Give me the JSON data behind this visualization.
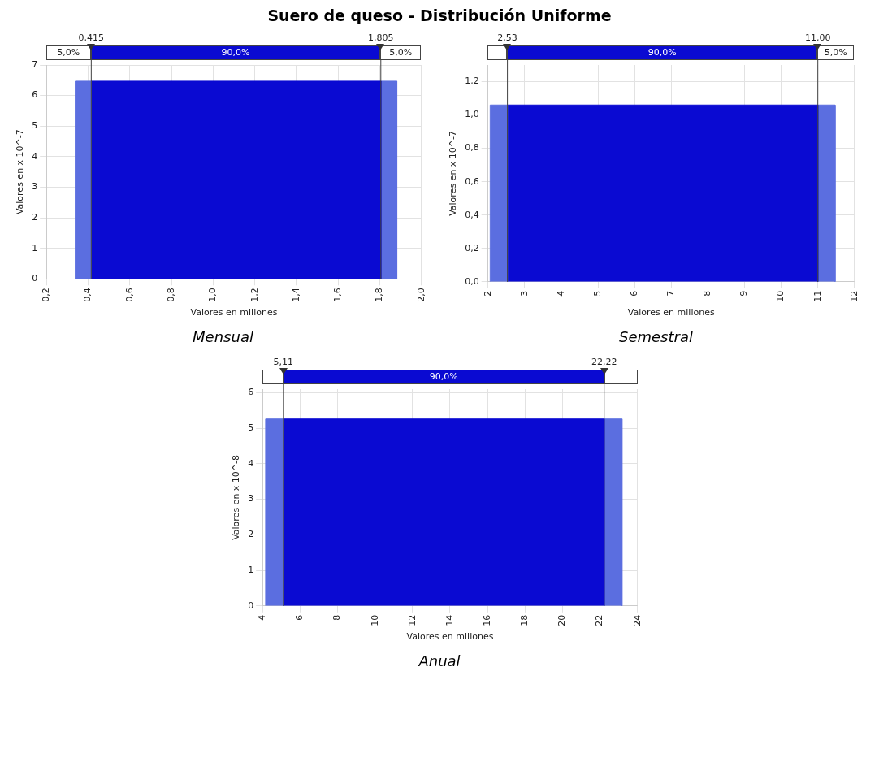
{
  "chart_data": [
    {
      "type": "histogram",
      "title": "Suero de queso - Distribución Uniforme",
      "subtitle": "Mensual",
      "xlabel": "Valores en millones",
      "ylabel": "Valores en x 10^-7",
      "bins": [
        0.338,
        0.415,
        1.805,
        1.882
      ],
      "values": [
        6.47,
        6.47,
        6.47
      ],
      "colors": [
        "#5b6ee0",
        "#0a0ad2",
        "#5b6ee0"
      ],
      "xlim": [
        0.2,
        2.0
      ],
      "xticks": [
        {
          "value": 0.2,
          "label": "0,2"
        },
        {
          "value": 0.4,
          "label": "0,4"
        },
        {
          "value": 0.6,
          "label": "0,6"
        },
        {
          "value": 0.8,
          "label": "0,8"
        },
        {
          "value": 1.0,
          "label": "1,0"
        },
        {
          "value": 1.2,
          "label": "1,2"
        },
        {
          "value": 1.4,
          "label": "1,4"
        },
        {
          "value": 1.6,
          "label": "1,6"
        },
        {
          "value": 1.8,
          "label": "1,8"
        },
        {
          "value": 2.0,
          "label": "2,0"
        }
      ],
      "ylim": [
        0,
        7
      ],
      "yticks": [
        0,
        1,
        2,
        3,
        4,
        5,
        6,
        7
      ],
      "grid": true,
      "ref_lines": [
        {
          "axis": "x",
          "value": 0.415,
          "label": "0,415",
          "color": "#404040"
        },
        {
          "axis": "x",
          "value": 1.805,
          "label": "1,805",
          "color": "#404040"
        }
      ],
      "annotations": [
        "5,0%",
        "90,0%",
        "5,0%"
      ]
    },
    {
      "type": "histogram",
      "subtitle": "Semestral",
      "xlabel": "Valores en millones",
      "ylabel": "Valores en x 10^-7",
      "bins": [
        2.059,
        2.53,
        11.0,
        11.471
      ],
      "values": [
        1.06,
        1.06,
        1.06
      ],
      "colors": [
        "#5b6ee0",
        "#0a0ad2",
        "#5b6ee0"
      ],
      "xlim": [
        2,
        12
      ],
      "xticks": [
        2,
        3,
        4,
        5,
        6,
        7,
        8,
        9,
        10,
        11,
        12
      ],
      "ylim": [
        0,
        1.3
      ],
      "yticks": [
        {
          "value": 0,
          "label": "0,0"
        },
        {
          "value": 0.2,
          "label": "0,2"
        },
        {
          "value": 0.4,
          "label": "0,4"
        },
        {
          "value": 0.6,
          "label": "0,6"
        },
        {
          "value": 0.8,
          "label": "0,8"
        },
        {
          "value": 1.0,
          "label": "1,0"
        },
        {
          "value": 1.2,
          "label": "1,2"
        }
      ],
      "grid": true,
      "ref_lines": [
        {
          "axis": "x",
          "value": 2.53,
          "label": "2,53",
          "color": "#404040"
        },
        {
          "axis": "x",
          "value": 11.0,
          "label": "11,00",
          "color": "#404040"
        }
      ],
      "annotations": [
        null,
        "90,0%",
        "5,0%"
      ]
    },
    {
      "type": "histogram",
      "subtitle": "Anual",
      "xlabel": "Valores en millones",
      "ylabel": "Valores en x 10^-8",
      "bins": [
        4.16,
        5.11,
        22.22,
        23.17
      ],
      "values": [
        5.26,
        5.26,
        5.26
      ],
      "colors": [
        "#5b6ee0",
        "#0a0ad2",
        "#5b6ee0"
      ],
      "xlim": [
        4,
        24
      ],
      "xticks": [
        4,
        6,
        8,
        10,
        12,
        14,
        16,
        18,
        20,
        22,
        24
      ],
      "ylim": [
        0,
        6.1
      ],
      "yticks": [
        0,
        1,
        2,
        3,
        4,
        5,
        6
      ],
      "grid": true,
      "ref_lines": [
        {
          "axis": "x",
          "value": 5.11,
          "label": "5,11",
          "color": "#404040"
        },
        {
          "axis": "x",
          "value": 22.22,
          "label": "22,22",
          "color": "#404040"
        }
      ],
      "annotations": [
        null,
        "90,0%",
        null
      ]
    }
  ]
}
